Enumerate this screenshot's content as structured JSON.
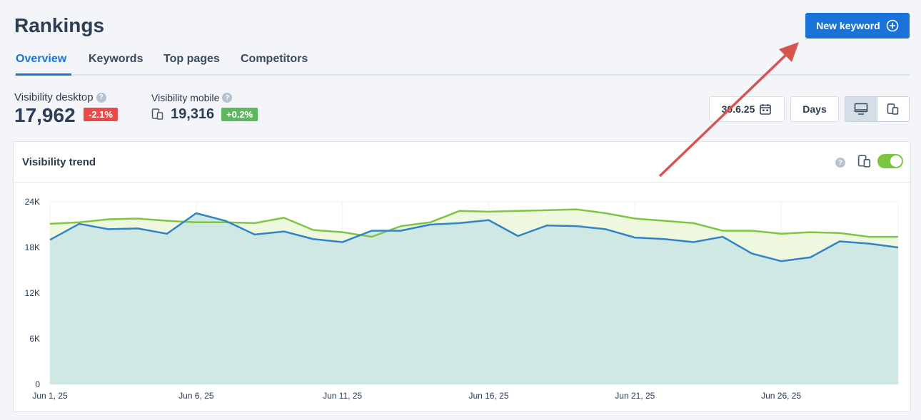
{
  "header": {
    "title": "Rankings",
    "new_keyword_label": "New keyword"
  },
  "tabs": [
    {
      "label": "Overview",
      "active": true
    },
    {
      "label": "Keywords",
      "active": false
    },
    {
      "label": "Top pages",
      "active": false
    },
    {
      "label": "Competitors",
      "active": false
    }
  ],
  "metrics": {
    "desktop": {
      "label": "Visibility desktop",
      "value": "17,962",
      "change": "-2.1%"
    },
    "mobile": {
      "label": "Visibility mobile",
      "value": "19,316",
      "change": "+0.2%"
    }
  },
  "controls": {
    "date": "30.6.25",
    "granularity": "Days",
    "device_selected": "desktop"
  },
  "colors": {
    "accent": "#1a73d9",
    "desktop_line": "#3183c8",
    "mobile_line": "#7dc542",
    "negative": "#e94a4a",
    "positive": "#5cb85c"
  },
  "icons": [
    "plus-circle-icon",
    "help-icon",
    "mobile-device-icon",
    "calendar-icon",
    "desktop-icon",
    "toggle-switch"
  ],
  "chart_data": {
    "type": "area",
    "title": "Visibility trend",
    "xlabel": "",
    "ylabel": "",
    "ylim": [
      0,
      24000
    ],
    "yticks": [
      "0",
      "6K",
      "12K",
      "18K",
      "24K"
    ],
    "xtick_labels": [
      "Jun 1, 25",
      "Jun 6, 25",
      "Jun 11, 25",
      "Jun 16, 25",
      "Jun 21, 25",
      "Jun 26, 25"
    ],
    "x": [
      "Jun 1",
      "Jun 2",
      "Jun 3",
      "Jun 4",
      "Jun 5",
      "Jun 6",
      "Jun 7",
      "Jun 8",
      "Jun 9",
      "Jun 10",
      "Jun 11",
      "Jun 12",
      "Jun 13",
      "Jun 14",
      "Jun 15",
      "Jun 16",
      "Jun 17",
      "Jun 18",
      "Jun 19",
      "Jun 20",
      "Jun 21",
      "Jun 22",
      "Jun 23",
      "Jun 24",
      "Jun 25",
      "Jun 26",
      "Jun 27",
      "Jun 28",
      "Jun 29",
      "Jun 30"
    ],
    "series": [
      {
        "name": "Visibility mobile",
        "values": [
          21100,
          21300,
          21700,
          21800,
          21500,
          21300,
          21300,
          21200,
          21900,
          20300,
          20000,
          19400,
          20800,
          21300,
          22800,
          22700,
          22800,
          22900,
          23000,
          22500,
          21800,
          21500,
          21200,
          20200,
          20200,
          19800,
          20000,
          19900,
          19400,
          19400
        ]
      },
      {
        "name": "Visibility desktop",
        "values": [
          19000,
          21100,
          20400,
          20500,
          19800,
          22500,
          21500,
          19700,
          20100,
          19100,
          18700,
          20200,
          20200,
          21000,
          21200,
          21600,
          19500,
          20900,
          20800,
          20400,
          19300,
          19100,
          18700,
          19400,
          17200,
          16200,
          16700,
          18800,
          18500,
          18000
        ]
      }
    ]
  }
}
